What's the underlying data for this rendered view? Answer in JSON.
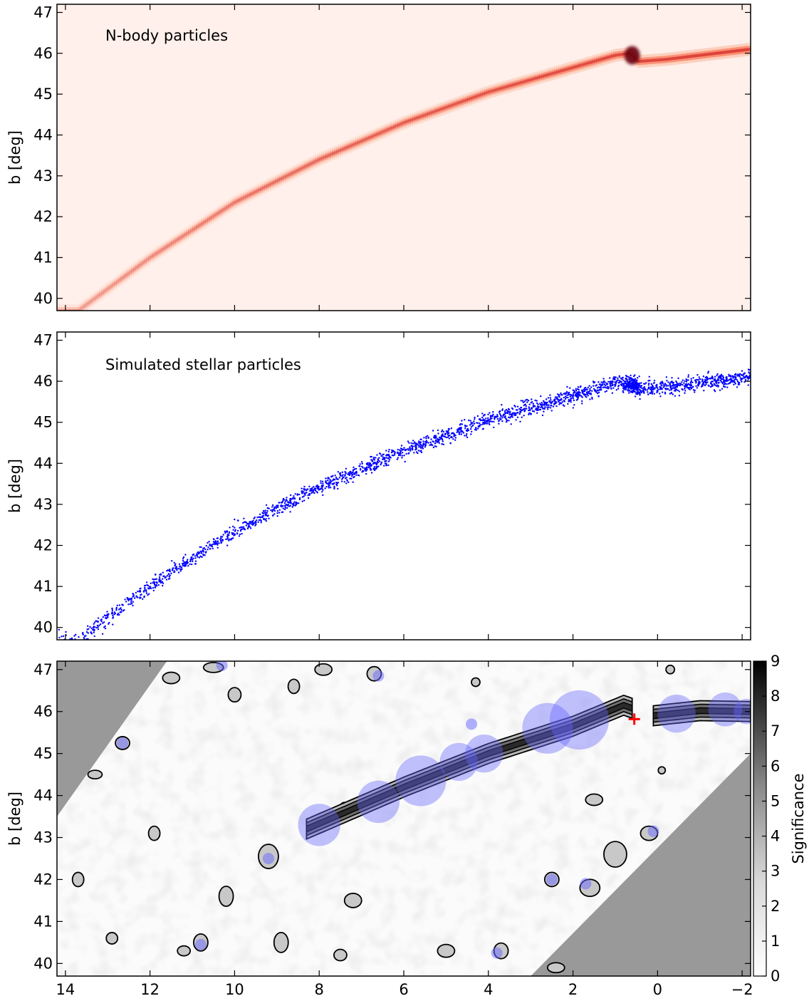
{
  "chart_data": [
    {
      "type": "heatmap",
      "panel": "top",
      "title": "N-body particles",
      "ylabel": "b [deg]",
      "xlim": [
        14.2,
        -2.2
      ],
      "ylim": [
        39.7,
        47.2
      ],
      "yticks": [
        "40",
        "41",
        "42",
        "43",
        "44",
        "45",
        "46",
        "47"
      ],
      "colormap": "Reds",
      "track": [
        {
          "l": 13.7,
          "b": 39.7
        },
        {
          "l": 12.0,
          "b": 41.0
        },
        {
          "l": 10.0,
          "b": 42.35
        },
        {
          "l": 8.0,
          "b": 43.4
        },
        {
          "l": 6.0,
          "b": 44.3
        },
        {
          "l": 4.0,
          "b": 45.05
        },
        {
          "l": 2.0,
          "b": 45.65
        },
        {
          "l": 1.0,
          "b": 45.95
        },
        {
          "l": 0.65,
          "b": 46.0
        },
        {
          "l": 0.45,
          "b": 45.8
        },
        {
          "l": -0.2,
          "b": 45.85
        },
        {
          "l": -1.0,
          "b": 45.95
        },
        {
          "l": -2.2,
          "b": 46.1
        }
      ],
      "overdensity": {
        "l": 0.6,
        "b": 45.95
      }
    },
    {
      "type": "scatter",
      "panel": "middle",
      "title": "Simulated stellar particles",
      "ylabel": "b [deg]",
      "xlim": [
        14.2,
        -2.2
      ],
      "ylim": [
        39.7,
        47.2
      ],
      "yticks": [
        "40",
        "41",
        "42",
        "43",
        "44",
        "45",
        "46",
        "47"
      ],
      "color": "#0000ff",
      "track": [
        {
          "l": 13.7,
          "b": 39.7
        },
        {
          "l": 12.0,
          "b": 41.0
        },
        {
          "l": 10.0,
          "b": 42.35
        },
        {
          "l": 8.0,
          "b": 43.4
        },
        {
          "l": 6.0,
          "b": 44.3
        },
        {
          "l": 4.0,
          "b": 45.05
        },
        {
          "l": 2.0,
          "b": 45.65
        },
        {
          "l": 1.0,
          "b": 45.95
        },
        {
          "l": 0.65,
          "b": 46.0
        },
        {
          "l": 0.45,
          "b": 45.8
        },
        {
          "l": -0.2,
          "b": 45.85
        },
        {
          "l": -1.0,
          "b": 45.95
        },
        {
          "l": -2.2,
          "b": 46.1
        }
      ]
    },
    {
      "type": "heatmap",
      "panel": "bottom",
      "ylabel": "b [deg]",
      "xlim": [
        14.2,
        -2.2
      ],
      "ylim": [
        39.7,
        47.2
      ],
      "xticks": [
        "14",
        "12",
        "10",
        "8",
        "6",
        "4",
        "2",
        "0",
        "−2"
      ],
      "yticks": [
        "40",
        "41",
        "42",
        "43",
        "44",
        "45",
        "46",
        "47"
      ],
      "colorbar": {
        "label": "Significance",
        "range": [
          0,
          9
        ],
        "ticks": [
          "0",
          "1",
          "2",
          "3",
          "4",
          "5",
          "6",
          "7",
          "8",
          "9"
        ]
      },
      "marker": {
        "l": 0.55,
        "b": 45.82,
        "symbol": "+",
        "color": "#ff0000"
      },
      "circles": [
        {
          "l": 8.0,
          "b": 43.3,
          "r": 0.5
        },
        {
          "l": 6.6,
          "b": 43.85,
          "r": 0.5
        },
        {
          "l": 5.6,
          "b": 44.35,
          "r": 0.6
        },
        {
          "l": 4.7,
          "b": 44.8,
          "r": 0.45
        },
        {
          "l": 4.1,
          "b": 45.0,
          "r": 0.45
        },
        {
          "l": 2.6,
          "b": 45.6,
          "r": 0.6
        },
        {
          "l": 1.85,
          "b": 45.8,
          "r": 0.7
        },
        {
          "l": -0.45,
          "b": 45.95,
          "r": 0.45
        },
        {
          "l": -1.6,
          "b": 46.05,
          "r": 0.4
        },
        {
          "l": -2.1,
          "b": 46.0,
          "r": 0.3
        }
      ],
      "masked_regions": [
        {
          "name": "upper-left",
          "polygon": [
            [
              14.2,
              47.2
            ],
            [
              11.6,
              47.2
            ],
            [
              14.2,
              43.5
            ]
          ]
        },
        {
          "name": "lower-right",
          "polygon": [
            [
              -2.2,
              39.7
            ],
            [
              3.0,
              39.7
            ],
            [
              -2.2,
              45.0
            ]
          ]
        }
      ]
    }
  ]
}
